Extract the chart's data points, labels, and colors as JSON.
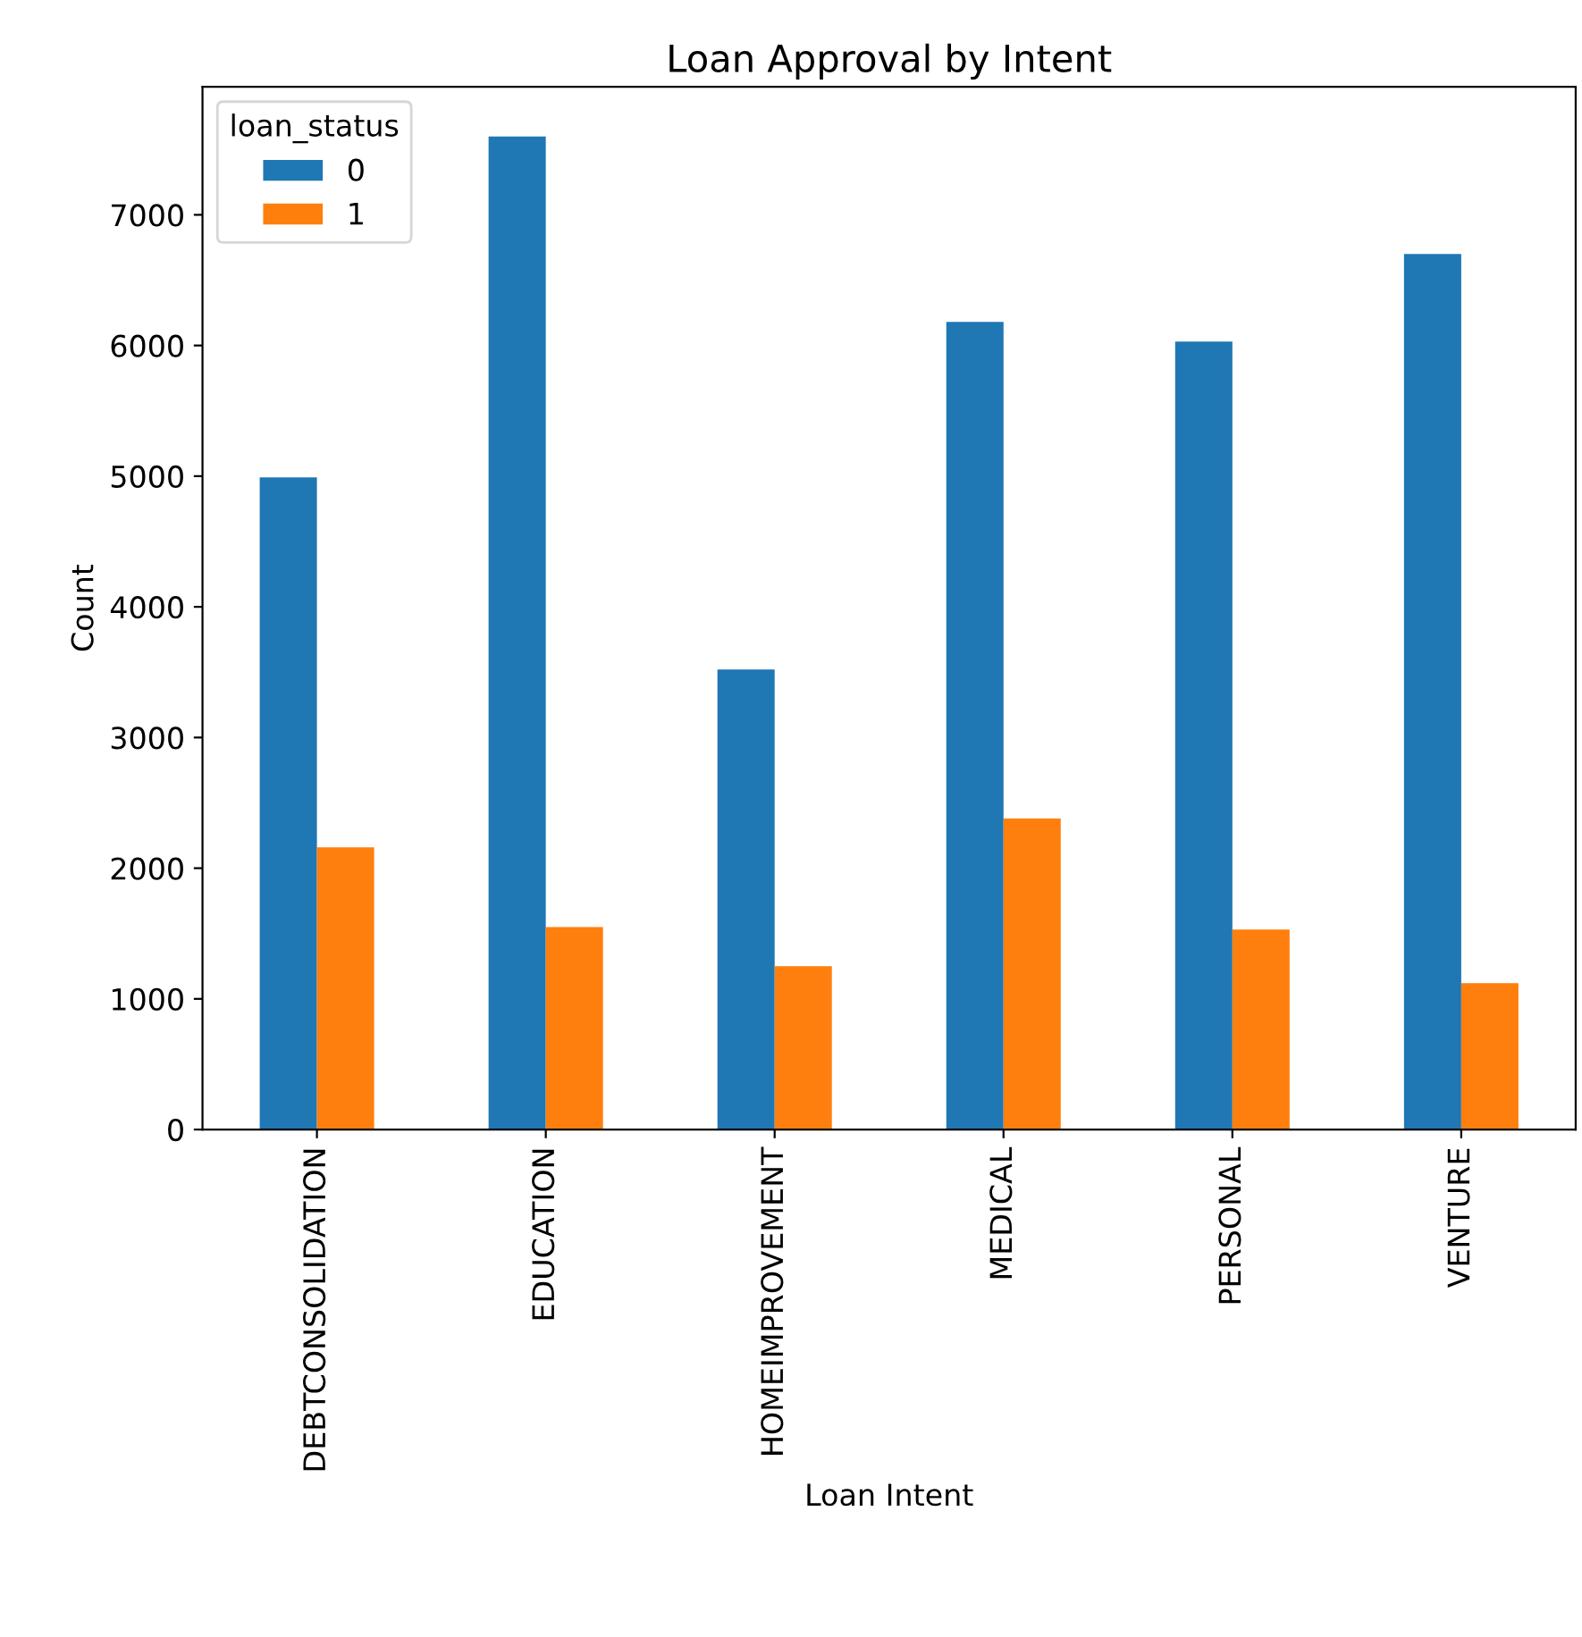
{
  "chart_data": {
    "type": "bar",
    "title": "Loan Approval by Intent",
    "xlabel": "Loan Intent",
    "ylabel": "Count",
    "legend_title": "loan_status",
    "categories": [
      "DEBTCONSOLIDATION",
      "EDUCATION",
      "HOMEIMPROVEMENT",
      "MEDICAL",
      "PERSONAL",
      "VENTURE"
    ],
    "series": [
      {
        "name": "0",
        "color": "#1f77b4",
        "values": [
          4990,
          7600,
          3520,
          6180,
          6030,
          6700
        ]
      },
      {
        "name": "1",
        "color": "#ff7f0e",
        "values": [
          2160,
          1550,
          1250,
          2380,
          1530,
          1120
        ]
      }
    ],
    "ylim": [
      0,
      7980
    ],
    "yticks": [
      0,
      1000,
      2000,
      3000,
      4000,
      5000,
      6000,
      7000
    ],
    "grid": false,
    "legend": "top left"
  }
}
